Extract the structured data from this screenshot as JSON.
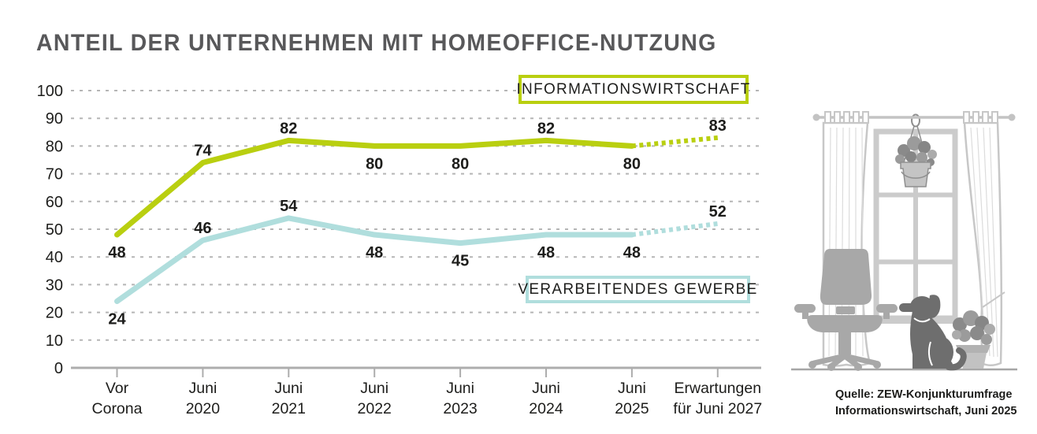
{
  "title": "ANTEIL DER UNTERNEHMEN MIT HOMEOFFICE-NUTZUNG",
  "legend": {
    "informationswirtschaft": "INFORMATIONSWIRTSCHAFT",
    "verarbeitendes_gewerbe": "VERARBEITENDES GEWERBE"
  },
  "source": {
    "line1": "Quelle: ZEW-Konjunkturumfrage",
    "line2": "Informationswirtschaft, Juni 2025"
  },
  "colors": {
    "informationswirtschaft": "#b9cf10",
    "verarbeitendes_gewerbe": "#b0dedd",
    "title_text": "#58585a",
    "axis_text": "#1d1d1b",
    "grid": "#b5b5b5",
    "axis_line": "#adadad"
  },
  "chart_data": {
    "type": "line",
    "title": "Anteil der Unternehmen mit Homeoffice-Nutzung",
    "categories": [
      "Vor Corona",
      "Juni 2020",
      "Juni 2021",
      "Juni 2022",
      "Juni 2023",
      "Juni 2024",
      "Juni 2025",
      "Erwartungen für Juni 2027"
    ],
    "category_label_lines": [
      [
        "Vor",
        "Corona"
      ],
      [
        "Juni",
        "2020"
      ],
      [
        "Juni",
        "2021"
      ],
      [
        "Juni",
        "2022"
      ],
      [
        "Juni",
        "2023"
      ],
      [
        "Juni",
        "2024"
      ],
      [
        "Juni",
        "2025"
      ],
      [
        "Erwartungen",
        "für Juni 2027"
      ]
    ],
    "series": [
      {
        "name": "INFORMATIONSWIRTSCHAFT",
        "color": "#b9cf10",
        "values": [
          48,
          74,
          82,
          80,
          80,
          82,
          80,
          83
        ],
        "label_positions": [
          "below",
          "above",
          "above",
          "below",
          "below",
          "above",
          "below",
          "above"
        ]
      },
      {
        "name": "VERARBEITENDES GEWERBE",
        "color": "#b0dedd",
        "values": [
          24,
          46,
          54,
          48,
          45,
          48,
          48,
          52
        ],
        "label_positions": [
          "below",
          "above",
          "above",
          "below",
          "below",
          "below",
          "below",
          "above"
        ]
      }
    ],
    "dashed_from_index": 6,
    "y_ticks": [
      0,
      10,
      20,
      30,
      40,
      50,
      60,
      70,
      80,
      90,
      100
    ],
    "ylim": [
      0,
      100
    ],
    "grid": "horizontal-dashed",
    "legend_position": "boxed-labels-inside-plot"
  }
}
